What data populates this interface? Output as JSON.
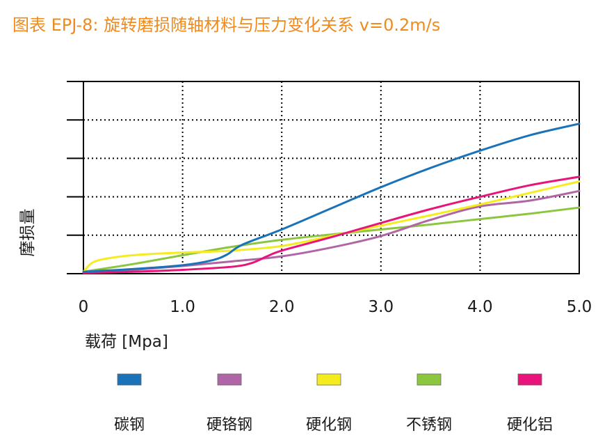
{
  "title": "图表 EPJ-8: 旋转磨损随轴材料与压力变化关系 v=0.2m/s",
  "colors": {
    "title": "#f08a1c",
    "axis": "#000000",
    "grid": "#000000"
  },
  "chart_data": {
    "type": "line",
    "title": "图表 EPJ-8: 旋转磨损随轴材料与压力变化关系 v=0.2m/s",
    "xlabel": "载荷  [Mpa]",
    "ylabel": "摩损量",
    "xlim": [
      0,
      5
    ],
    "ylim": [
      0,
      5
    ],
    "grid": true,
    "legend_position": "bottom",
    "x_ticks": [
      0,
      1,
      2,
      3,
      4,
      5
    ],
    "x_tick_labels": [
      "0",
      "1.0",
      "2.0",
      "3.0",
      "4.0",
      "5.0"
    ],
    "y_ticks": [
      1,
      2,
      3,
      4,
      5
    ],
    "series": [
      {
        "name": "碳钢",
        "color": "#1a73b8",
        "x": [
          0,
          0.5,
          1.0,
          1.3,
          1.45,
          1.6,
          2.0,
          2.5,
          3.0,
          3.5,
          4.0,
          4.5,
          5.0
        ],
        "y": [
          0.05,
          0.12,
          0.22,
          0.35,
          0.5,
          0.75,
          1.15,
          1.7,
          2.25,
          2.75,
          3.2,
          3.6,
          3.9
        ]
      },
      {
        "name": "硬铬钢",
        "color": "#b066a6",
        "x": [
          0,
          0.5,
          1.0,
          1.5,
          2.0,
          2.5,
          3.0,
          3.5,
          4.0,
          4.5,
          5.0
        ],
        "y": [
          0.05,
          0.1,
          0.2,
          0.32,
          0.45,
          0.68,
          0.98,
          1.4,
          1.75,
          1.9,
          2.15
        ]
      },
      {
        "name": "硬化钢",
        "color": "#f5ec1f",
        "x": [
          0,
          0.1,
          0.3,
          0.6,
          1.0,
          1.5,
          2.0,
          2.5,
          3.0,
          3.5,
          4.0,
          4.5,
          5.0
        ],
        "y": [
          0.05,
          0.3,
          0.42,
          0.5,
          0.55,
          0.6,
          0.72,
          0.98,
          1.25,
          1.52,
          1.8,
          2.1,
          2.4
        ]
      },
      {
        "name": "不锈钢",
        "color": "#8cc63f",
        "x": [
          0,
          0.5,
          1.0,
          1.5,
          2.0,
          2.5,
          3.0,
          3.5,
          4.0,
          4.5,
          5.0
        ],
        "y": [
          0.05,
          0.25,
          0.48,
          0.7,
          0.88,
          1.02,
          1.15,
          1.28,
          1.42,
          1.56,
          1.72
        ]
      },
      {
        "name": "硬化铝",
        "color": "#e8147a",
        "x": [
          0,
          0.5,
          1.0,
          1.5,
          1.7,
          1.85,
          2.0,
          2.5,
          3.0,
          3.5,
          4.0,
          4.5,
          5.0
        ],
        "y": [
          0.02,
          0.05,
          0.1,
          0.18,
          0.28,
          0.45,
          0.6,
          0.95,
          1.32,
          1.68,
          2.0,
          2.3,
          2.52
        ]
      }
    ]
  }
}
